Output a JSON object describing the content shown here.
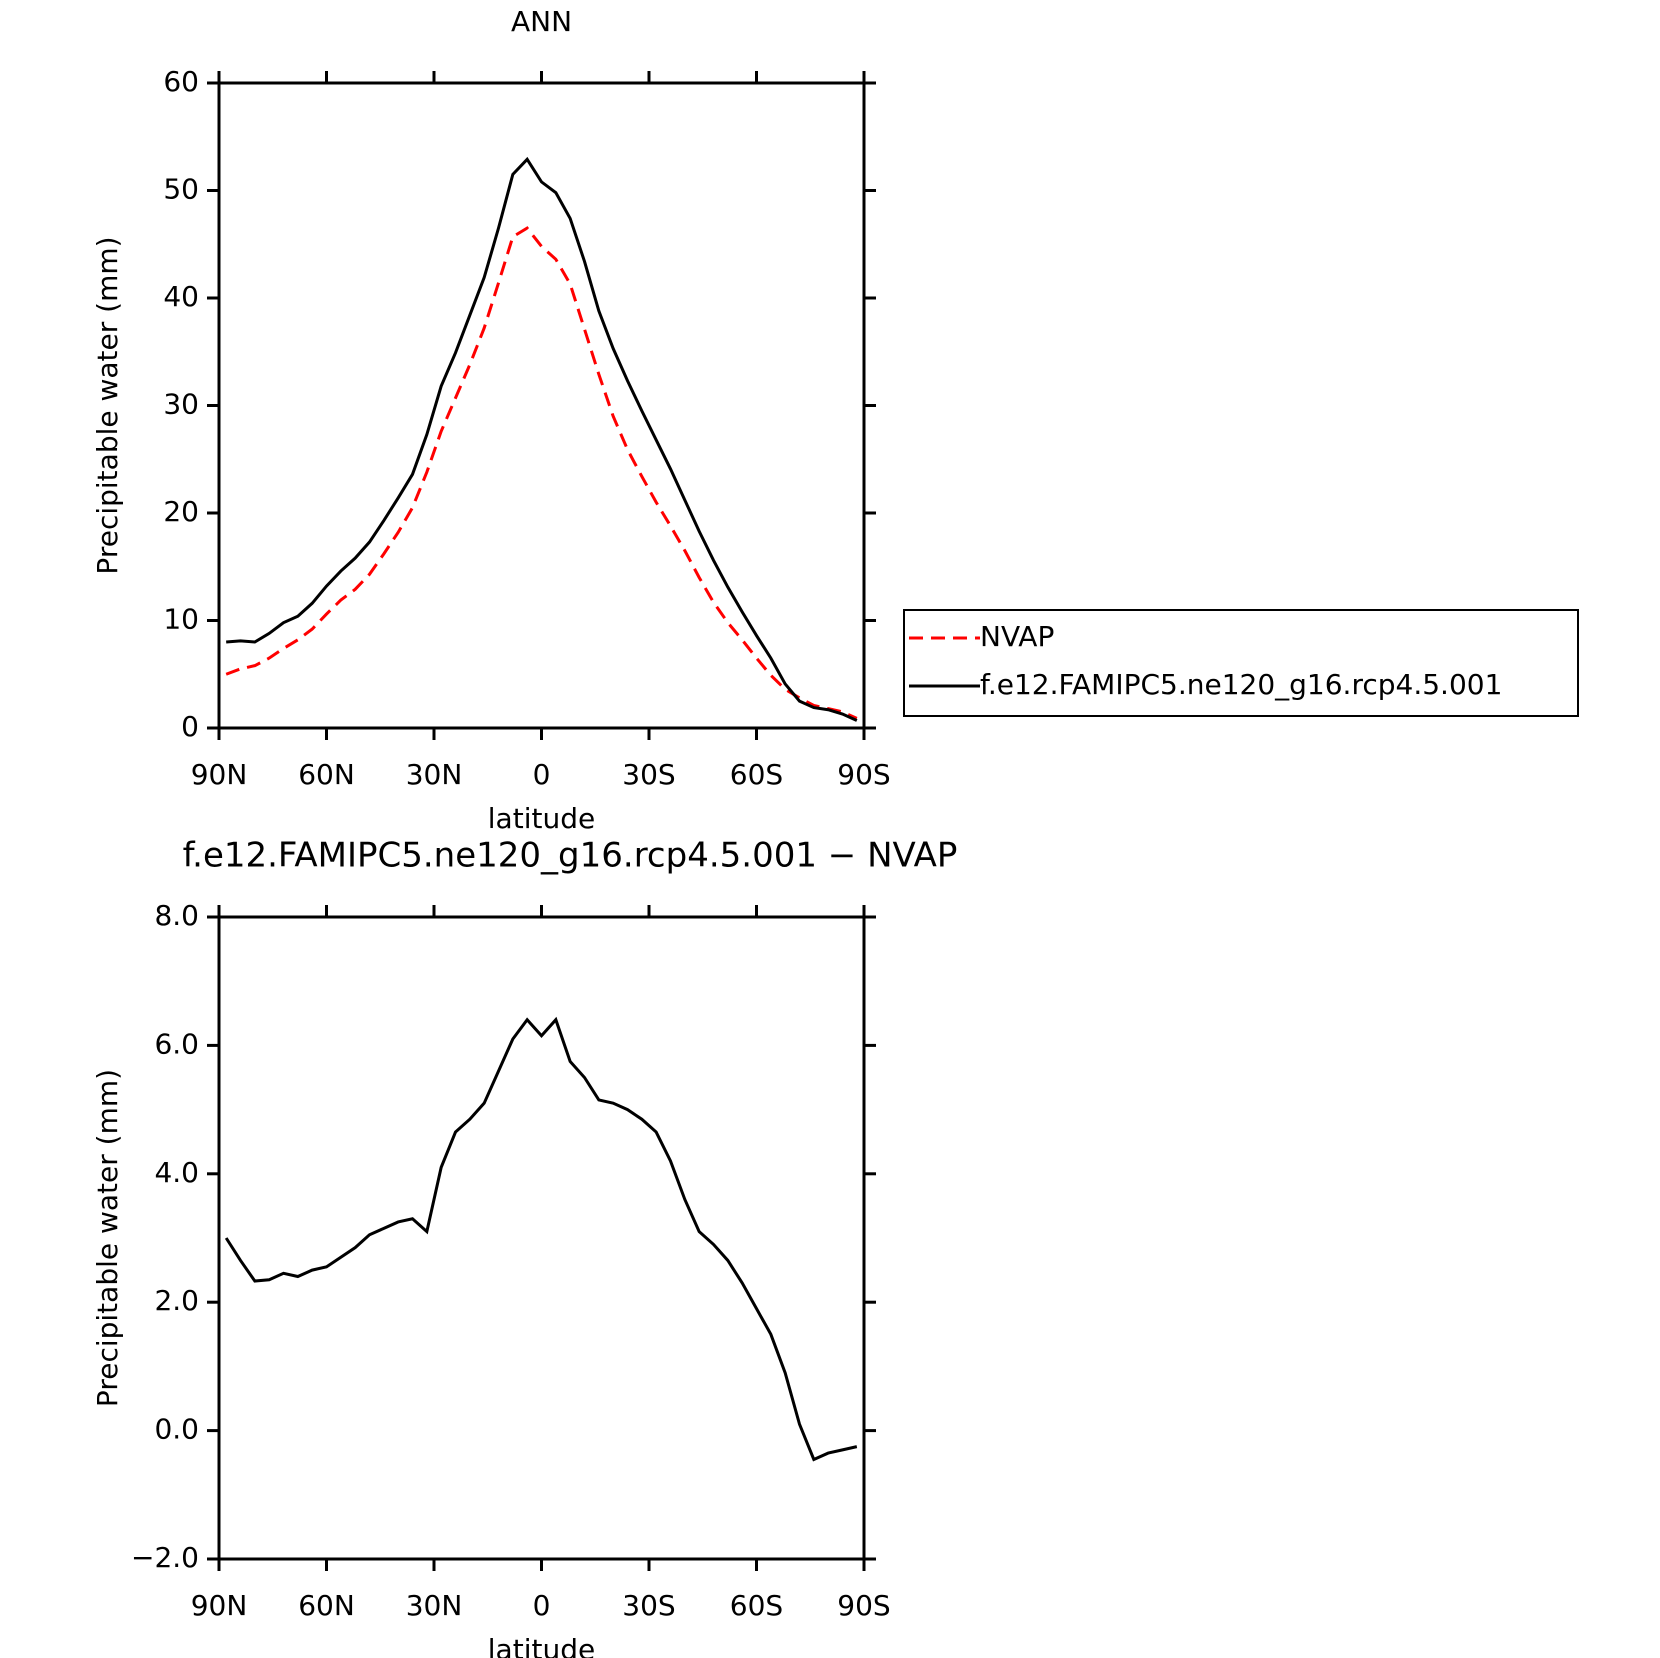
{
  "chart_data": [
    {
      "type": "line",
      "title": "ANN",
      "x_label": "latitude",
      "y_label": "Precipitable water (mm)",
      "x": [
        88,
        84,
        80,
        76,
        72,
        68,
        64,
        60,
        56,
        52,
        48,
        44,
        40,
        36,
        32,
        28,
        24,
        20,
        16,
        12,
        8,
        4,
        0,
        -4,
        -8,
        -12,
        -16,
        -20,
        -24,
        -28,
        -32,
        -36,
        -40,
        -44,
        -48,
        -52,
        -56,
        -60,
        -64,
        -68,
        -72,
        -76,
        -80,
        -84,
        -88
      ],
      "xlim": [
        90,
        -90
      ],
      "xticks": [
        {
          "value": 90,
          "label": "90N"
        },
        {
          "value": 60,
          "label": "60N"
        },
        {
          "value": 30,
          "label": "30N"
        },
        0,
        {
          "value": -30,
          "label": "30S"
        },
        {
          "value": -60,
          "label": "60S"
        },
        {
          "value": -90,
          "label": "90S"
        }
      ],
      "ylim": [
        0,
        60
      ],
      "yticks": [
        0,
        10,
        20,
        30,
        40,
        50,
        60
      ],
      "series": [
        {
          "name": "NVAP",
          "color": "#ff0000",
          "dash": true,
          "values": [
            5.0,
            5.5,
            5.8,
            6.5,
            7.4,
            8.2,
            9.2,
            10.6,
            11.9,
            12.9,
            14.3,
            16.2,
            18.2,
            20.5,
            23.8,
            27.6,
            30.7,
            33.8,
            37.2,
            41.4,
            45.7,
            46.5,
            44.8,
            43.6,
            41.3,
            37.1,
            32.9,
            29.0,
            25.9,
            23.4,
            21.0,
            18.8,
            16.5,
            14.0,
            11.7,
            9.8,
            8.2,
            6.5,
            4.9,
            3.6,
            2.8,
            2.1,
            1.8,
            1.5,
            0.9
          ]
        },
        {
          "name": "f.e12.FAMIPC5.ne120_g16.rcp4.5.001",
          "color": "#000000",
          "dash": false,
          "values": [
            8.0,
            8.1,
            8.0,
            8.8,
            9.8,
            10.4,
            11.6,
            13.2,
            14.6,
            15.8,
            17.3,
            19.3,
            21.4,
            23.6,
            27.3,
            31.8,
            34.9,
            38.4,
            41.9,
            46.5,
            51.5,
            52.9,
            50.8,
            49.8,
            47.4,
            43.4,
            38.8,
            35.3,
            32.3,
            29.5,
            26.8,
            24.1,
            21.2,
            18.3,
            15.6,
            13.1,
            10.8,
            8.6,
            6.5,
            4.1,
            2.5,
            1.9,
            1.7,
            1.3,
            0.7
          ]
        }
      ]
    },
    {
      "type": "line",
      "title": "f.e12.FAMIPC5.ne120_g16.rcp4.5.001 − NVAP",
      "x_label": "latitude",
      "y_label": "Precipitable water (mm)",
      "x": [
        88,
        84,
        80,
        76,
        72,
        68,
        64,
        60,
        56,
        52,
        48,
        44,
        40,
        36,
        32,
        28,
        24,
        20,
        16,
        12,
        8,
        4,
        0,
        -4,
        -8,
        -12,
        -16,
        -20,
        -24,
        -28,
        -32,
        -36,
        -40,
        -44,
        -48,
        -52,
        -56,
        -60,
        -64,
        -68,
        -72,
        -76,
        -80,
        -84,
        -88
      ],
      "xlim": [
        90,
        -90
      ],
      "xticks": [
        {
          "value": 90,
          "label": "90N"
        },
        {
          "value": 60,
          "label": "60N"
        },
        {
          "value": 30,
          "label": "30N"
        },
        0,
        {
          "value": -30,
          "label": "30S"
        },
        {
          "value": -60,
          "label": "60S"
        },
        {
          "value": -90,
          "label": "90S"
        }
      ],
      "ylim": [
        -2,
        8
      ],
      "yticks": [
        {
          "value": -2,
          "label": "−2.0"
        },
        {
          "value": 0,
          "label": "0.0"
        },
        {
          "value": 2,
          "label": "2.0"
        },
        {
          "value": 4,
          "label": "4.0"
        },
        {
          "value": 6,
          "label": "6.0"
        },
        {
          "value": 8,
          "label": "8.0"
        }
      ],
      "series": [
        {
          "color": "#000000",
          "dash": false,
          "values": [
            3.0,
            2.65,
            2.33,
            2.35,
            2.45,
            2.4,
            2.5,
            2.55,
            2.7,
            2.85,
            3.05,
            3.15,
            3.25,
            3.3,
            3.1,
            4.1,
            4.65,
            4.85,
            5.1,
            5.6,
            6.1,
            6.4,
            6.15,
            6.4,
            5.75,
            5.5,
            5.15,
            5.1,
            5.0,
            4.85,
            4.65,
            4.2,
            3.6,
            3.1,
            2.9,
            2.65,
            2.3,
            1.9,
            1.5,
            0.9,
            0.1,
            -0.45,
            -0.35,
            -0.3,
            -0.25
          ]
        }
      ]
    }
  ]
}
